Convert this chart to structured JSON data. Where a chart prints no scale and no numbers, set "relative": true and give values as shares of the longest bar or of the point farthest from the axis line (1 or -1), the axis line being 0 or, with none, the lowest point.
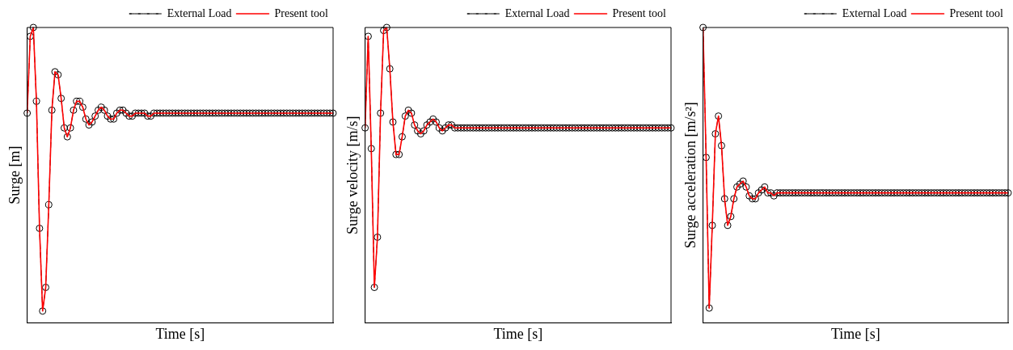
{
  "chart_data": [
    {
      "type": "line",
      "relative": true,
      "xlabel": "Time [s]",
      "ylabel": "Surge [m]",
      "legend": "top right",
      "tick_labels": false,
      "categories": [
        null,
        null,
        null,
        null,
        null,
        null,
        null,
        null,
        null,
        null,
        null,
        null,
        null,
        null,
        null,
        null,
        null,
        null,
        null,
        null,
        null,
        null,
        null,
        null,
        null,
        null,
        null,
        null,
        null,
        null,
        null,
        null,
        null,
        null,
        null,
        null,
        null,
        null,
        null,
        null,
        null,
        null,
        null,
        null,
        null,
        null,
        null,
        null,
        null,
        null,
        null,
        null,
        null,
        null,
        null,
        null,
        null,
        null,
        null,
        null,
        null,
        null,
        null,
        null,
        null,
        null,
        null,
        null,
        null,
        null,
        null,
        null,
        null,
        null,
        null,
        null,
        null,
        null,
        null,
        null,
        null,
        null,
        null,
        null,
        null,
        null,
        null,
        null,
        null,
        null,
        null,
        null,
        null,
        null,
        null,
        null,
        null,
        null,
        null,
        null
      ],
      "series": [
        {
          "name": "External Load",
          "color": "#000000",
          "marker": "circle",
          "line_style": "dashed",
          "values": [
            0.71,
            0.97,
            1,
            0.75,
            0.32,
            0.04,
            0.12,
            0.4,
            0.72,
            0.85,
            0.84,
            0.76,
            0.66,
            0.63,
            0.66,
            0.72,
            0.75,
            0.75,
            0.73,
            0.69,
            0.67,
            0.68,
            0.7,
            0.72,
            0.73,
            0.72,
            0.7,
            0.69,
            0.69,
            0.71,
            0.72,
            0.72,
            0.71,
            0.7,
            0.7,
            0.71,
            0.71,
            0.71,
            0.71,
            0.7,
            0.7,
            0.71,
            0.71,
            0.71,
            0.71,
            0.71,
            0.71,
            0.71,
            0.71,
            0.71,
            0.71,
            0.71,
            0.71,
            0.71,
            0.71,
            0.71,
            0.71,
            0.71,
            0.71,
            0.71,
            0.71,
            0.71,
            0.71,
            0.71,
            0.71,
            0.71,
            0.71,
            0.71,
            0.71,
            0.71,
            0.71,
            0.71,
            0.71,
            0.71,
            0.71,
            0.71,
            0.71,
            0.71,
            0.71,
            0.71,
            0.71,
            0.71,
            0.71,
            0.71,
            0.71,
            0.71,
            0.71,
            0.71,
            0.71,
            0.71,
            0.71,
            0.71,
            0.71,
            0.71,
            0.71,
            0.71,
            0.71,
            0.71,
            0.71,
            0.71
          ]
        },
        {
          "name": "Present tool",
          "color": "#ff0000",
          "marker": "none",
          "line_style": "solid",
          "values": [
            0.71,
            0.97,
            1,
            0.75,
            0.32,
            0.04,
            0.12,
            0.4,
            0.72,
            0.85,
            0.84,
            0.76,
            0.66,
            0.63,
            0.66,
            0.72,
            0.75,
            0.75,
            0.73,
            0.69,
            0.67,
            0.68,
            0.7,
            0.72,
            0.73,
            0.72,
            0.7,
            0.69,
            0.69,
            0.71,
            0.72,
            0.72,
            0.71,
            0.7,
            0.7,
            0.71,
            0.71,
            0.71,
            0.71,
            0.7,
            0.7,
            0.71,
            0.71,
            0.71,
            0.71,
            0.71,
            0.71,
            0.71,
            0.71,
            0.71,
            0.71,
            0.71,
            0.71,
            0.71,
            0.71,
            0.71,
            0.71,
            0.71,
            0.71,
            0.71,
            0.71,
            0.71,
            0.71,
            0.71,
            0.71,
            0.71,
            0.71,
            0.71,
            0.71,
            0.71,
            0.71,
            0.71,
            0.71,
            0.71,
            0.71,
            0.71,
            0.71,
            0.71,
            0.71,
            0.71,
            0.71,
            0.71,
            0.71,
            0.71,
            0.71,
            0.71,
            0.71,
            0.71,
            0.71,
            0.71,
            0.71,
            0.71,
            0.71,
            0.71,
            0.71,
            0.71,
            0.71,
            0.71,
            0.71,
            0.71
          ]
        }
      ]
    },
    {
      "type": "line",
      "relative": true,
      "xlabel": "Time [s]",
      "ylabel": "Surge velocity [m/s]",
      "legend": "top right",
      "tick_labels": false,
      "categories": [
        null,
        null,
        null,
        null,
        null,
        null,
        null,
        null,
        null,
        null,
        null,
        null,
        null,
        null,
        null,
        null,
        null,
        null,
        null,
        null,
        null,
        null,
        null,
        null,
        null,
        null,
        null,
        null,
        null,
        null,
        null,
        null,
        null,
        null,
        null,
        null,
        null,
        null,
        null,
        null,
        null,
        null,
        null,
        null,
        null,
        null,
        null,
        null,
        null,
        null,
        null,
        null,
        null,
        null,
        null,
        null,
        null,
        null,
        null,
        null,
        null,
        null,
        null,
        null,
        null,
        null,
        null,
        null,
        null,
        null,
        null,
        null,
        null,
        null,
        null,
        null,
        null,
        null,
        null,
        null,
        null,
        null,
        null,
        null,
        null,
        null,
        null,
        null,
        null,
        null,
        null,
        null,
        null,
        null,
        null,
        null,
        null,
        null,
        null,
        null
      ],
      "series": [
        {
          "name": "External Load",
          "color": "#000000",
          "marker": "circle",
          "line_style": "dashed",
          "values": [
            0.66,
            0.97,
            0.59,
            0.12,
            0.29,
            0.71,
            0.99,
            1,
            0.86,
            0.68,
            0.57,
            0.57,
            0.63,
            0.7,
            0.72,
            0.71,
            0.67,
            0.65,
            0.64,
            0.65,
            0.67,
            0.68,
            0.69,
            0.68,
            0.66,
            0.65,
            0.66,
            0.67,
            0.67,
            0.66,
            0.66,
            0.66,
            0.66,
            0.66,
            0.66,
            0.66,
            0.66,
            0.66,
            0.66,
            0.66,
            0.66,
            0.66,
            0.66,
            0.66,
            0.66,
            0.66,
            0.66,
            0.66,
            0.66,
            0.66,
            0.66,
            0.66,
            0.66,
            0.66,
            0.66,
            0.66,
            0.66,
            0.66,
            0.66,
            0.66,
            0.66,
            0.66,
            0.66,
            0.66,
            0.66,
            0.66,
            0.66,
            0.66,
            0.66,
            0.66,
            0.66,
            0.66,
            0.66,
            0.66,
            0.66,
            0.66,
            0.66,
            0.66,
            0.66,
            0.66,
            0.66,
            0.66,
            0.66,
            0.66,
            0.66,
            0.66,
            0.66,
            0.66,
            0.66,
            0.66,
            0.66,
            0.66,
            0.66,
            0.66,
            0.66,
            0.66,
            0.66,
            0.66,
            0.66,
            0.66
          ]
        },
        {
          "name": "Present tool",
          "color": "#ff0000",
          "marker": "none",
          "line_style": "solid",
          "values": [
            0.66,
            0.97,
            0.59,
            0.12,
            0.29,
            0.71,
            0.99,
            1,
            0.86,
            0.68,
            0.57,
            0.57,
            0.63,
            0.7,
            0.72,
            0.71,
            0.67,
            0.65,
            0.64,
            0.65,
            0.67,
            0.68,
            0.69,
            0.68,
            0.66,
            0.65,
            0.66,
            0.67,
            0.67,
            0.66,
            0.66,
            0.66,
            0.66,
            0.66,
            0.66,
            0.66,
            0.66,
            0.66,
            0.66,
            0.66,
            0.66,
            0.66,
            0.66,
            0.66,
            0.66,
            0.66,
            0.66,
            0.66,
            0.66,
            0.66,
            0.66,
            0.66,
            0.66,
            0.66,
            0.66,
            0.66,
            0.66,
            0.66,
            0.66,
            0.66,
            0.66,
            0.66,
            0.66,
            0.66,
            0.66,
            0.66,
            0.66,
            0.66,
            0.66,
            0.66,
            0.66,
            0.66,
            0.66,
            0.66,
            0.66,
            0.66,
            0.66,
            0.66,
            0.66,
            0.66,
            0.66,
            0.66,
            0.66,
            0.66,
            0.66,
            0.66,
            0.66,
            0.66,
            0.66,
            0.66,
            0.66,
            0.66,
            0.66,
            0.66,
            0.66,
            0.66,
            0.66,
            0.66,
            0.66,
            0.66
          ]
        }
      ]
    },
    {
      "type": "line",
      "relative": true,
      "xlabel": "Time [s]",
      "ylabel": "Surge acceleration [m/s²]",
      "legend": "top right",
      "tick_labels": false,
      "categories": [
        null,
        null,
        null,
        null,
        null,
        null,
        null,
        null,
        null,
        null,
        null,
        null,
        null,
        null,
        null,
        null,
        null,
        null,
        null,
        null,
        null,
        null,
        null,
        null,
        null,
        null,
        null,
        null,
        null,
        null,
        null,
        null,
        null,
        null,
        null,
        null,
        null,
        null,
        null,
        null,
        null,
        null,
        null,
        null,
        null,
        null,
        null,
        null,
        null,
        null,
        null,
        null,
        null,
        null,
        null,
        null,
        null,
        null,
        null,
        null,
        null,
        null,
        null,
        null,
        null,
        null,
        null,
        null,
        null,
        null,
        null,
        null,
        null,
        null,
        null,
        null,
        null,
        null,
        null,
        null,
        null,
        null,
        null,
        null,
        null,
        null,
        null,
        null,
        null,
        null,
        null,
        null,
        null,
        null,
        null,
        null,
        null,
        null,
        null,
        null
      ],
      "series": [
        {
          "name": "External Load",
          "color": "#000000",
          "marker": "circle",
          "line_style": "dashed",
          "values": [
            1,
            0.56,
            0.05,
            0.33,
            0.64,
            0.7,
            0.6,
            0.42,
            0.33,
            0.36,
            0.42,
            0.46,
            0.47,
            0.48,
            0.46,
            0.43,
            0.42,
            0.42,
            0.44,
            0.45,
            0.46,
            0.44,
            0.44,
            0.43,
            0.44,
            0.44,
            0.44,
            0.44,
            0.44,
            0.44,
            0.44,
            0.44,
            0.44,
            0.44,
            0.44,
            0.44,
            0.44,
            0.44,
            0.44,
            0.44,
            0.44,
            0.44,
            0.44,
            0.44,
            0.44,
            0.44,
            0.44,
            0.44,
            0.44,
            0.44,
            0.44,
            0.44,
            0.44,
            0.44,
            0.44,
            0.44,
            0.44,
            0.44,
            0.44,
            0.44,
            0.44,
            0.44,
            0.44,
            0.44,
            0.44,
            0.44,
            0.44,
            0.44,
            0.44,
            0.44,
            0.44,
            0.44,
            0.44,
            0.44,
            0.44,
            0.44,
            0.44,
            0.44,
            0.44,
            0.44,
            0.44,
            0.44,
            0.44,
            0.44,
            0.44,
            0.44,
            0.44,
            0.44,
            0.44,
            0.44,
            0.44,
            0.44,
            0.44,
            0.44,
            0.44,
            0.44,
            0.44,
            0.44,
            0.44,
            0.44
          ]
        },
        {
          "name": "Present tool",
          "color": "#ff0000",
          "marker": "none",
          "line_style": "solid",
          "values": [
            1,
            0.56,
            0.05,
            0.33,
            0.64,
            0.7,
            0.6,
            0.42,
            0.33,
            0.36,
            0.42,
            0.46,
            0.47,
            0.48,
            0.46,
            0.43,
            0.42,
            0.42,
            0.44,
            0.45,
            0.46,
            0.44,
            0.44,
            0.43,
            0.44,
            0.44,
            0.44,
            0.44,
            0.44,
            0.44,
            0.44,
            0.44,
            0.44,
            0.44,
            0.44,
            0.44,
            0.44,
            0.44,
            0.44,
            0.44,
            0.44,
            0.44,
            0.44,
            0.44,
            0.44,
            0.44,
            0.44,
            0.44,
            0.44,
            0.44,
            0.44,
            0.44,
            0.44,
            0.44,
            0.44,
            0.44,
            0.44,
            0.44,
            0.44,
            0.44,
            0.44,
            0.44,
            0.44,
            0.44,
            0.44,
            0.44,
            0.44,
            0.44,
            0.44,
            0.44,
            0.44,
            0.44,
            0.44,
            0.44,
            0.44,
            0.44,
            0.44,
            0.44,
            0.44,
            0.44,
            0.44,
            0.44,
            0.44,
            0.44,
            0.44,
            0.44,
            0.44,
            0.44,
            0.44,
            0.44,
            0.44,
            0.44,
            0.44,
            0.44,
            0.44,
            0.44,
            0.44,
            0.44,
            0.44,
            0.44
          ]
        }
      ]
    }
  ]
}
